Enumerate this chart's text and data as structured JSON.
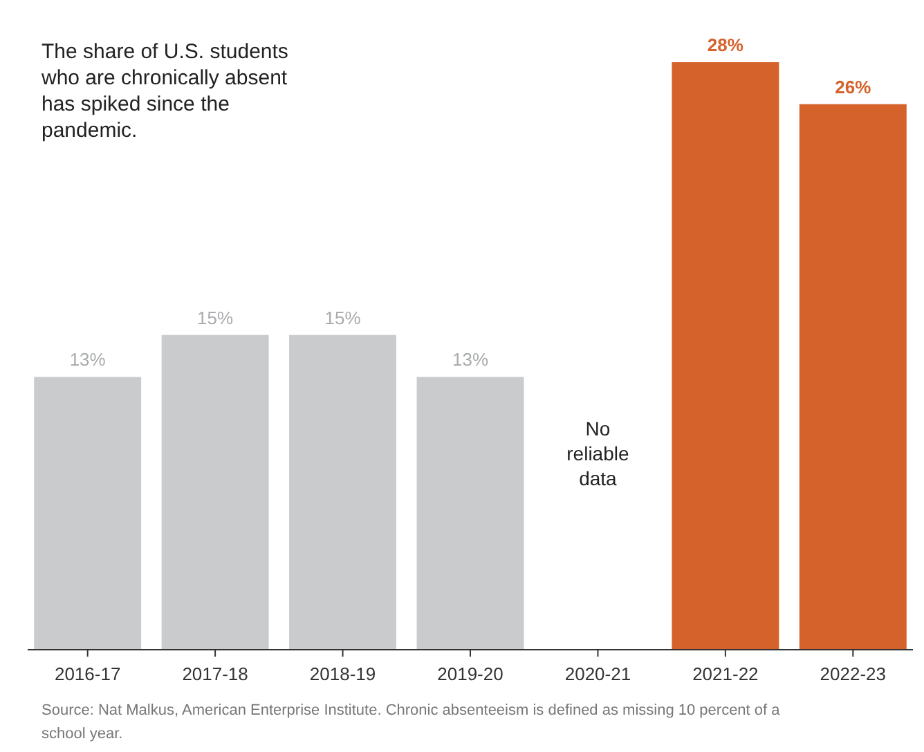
{
  "chart_data": {
    "type": "bar",
    "title": "The share of U.S. students who are chronically absent has spiked since the pandemic.",
    "categories": [
      "2016-17",
      "2017-18",
      "2018-19",
      "2019-20",
      "2020-21",
      "2021-22",
      "2022-23"
    ],
    "values": [
      13,
      15,
      15,
      13,
      null,
      28,
      26
    ],
    "colors": [
      "#c9cbcd",
      "#c9cbcd",
      "#c9cbcd",
      "#c9cbcd",
      null,
      "#d4622a",
      "#d4622a"
    ],
    "value_labels": [
      "13%",
      "15%",
      "15%",
      "13%",
      null,
      "28%",
      "26%"
    ],
    "annotations": [
      "No reliable data",
      "Source: Nat Malkus, American Enterprise Institute. Chronic absenteeism is defined as missing 10 percent of a school year."
    ]
  }
}
